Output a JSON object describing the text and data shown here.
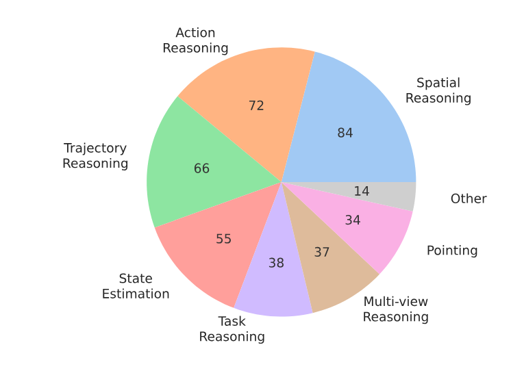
{
  "chart_data": {
    "type": "pie",
    "categories": [
      "Spatial Reasoning",
      "Action Reasoning",
      "Trajectory Reasoning",
      "State Estimation",
      "Task Reasoning",
      "Multi-view Reasoning",
      "Pointing",
      "Other"
    ],
    "values": [
      84,
      72,
      66,
      55,
      38,
      37,
      34,
      14
    ],
    "colors": [
      "#a1c9f4",
      "#ffb482",
      "#8de5a1",
      "#ff9f9b",
      "#d0bbff",
      "#debb9b",
      "#fab0e4",
      "#cfcfcf"
    ],
    "data_labels": true
  }
}
